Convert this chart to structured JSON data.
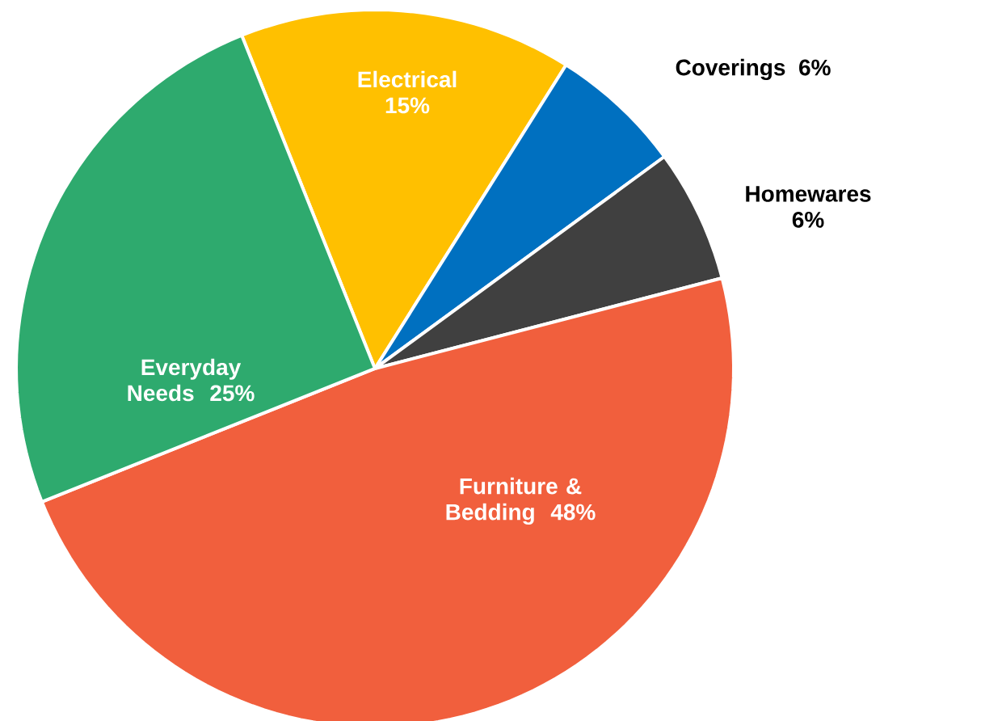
{
  "chart_data": {
    "type": "pie",
    "categories": [
      "Electrical",
      "Coverings",
      "Homewares",
      "Furniture & Bedding",
      "Everyday Needs"
    ],
    "values": [
      15,
      6,
      6,
      48,
      25
    ],
    "value_labels": [
      "15%",
      "6%",
      "6%",
      "48%",
      "25%"
    ],
    "colors": [
      "#ffc000",
      "#0070c0",
      "#404040",
      "#f15f3d",
      "#2eaa6e"
    ]
  }
}
